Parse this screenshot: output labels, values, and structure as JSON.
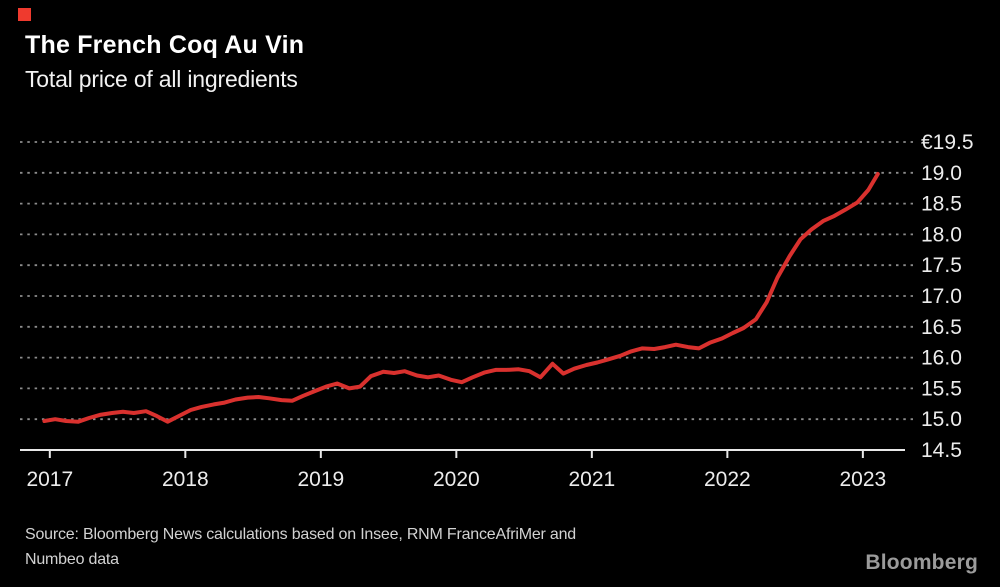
{
  "brand": {
    "red_square_color": "#ef3a2e",
    "logo_text": "Bloomberg",
    "logo_color": "#9b9b9b"
  },
  "header": {
    "title": "The French Coq Au Vin",
    "subtitle": "Total price of all ingredients"
  },
  "footer": {
    "source_line1": "Source: Bloomberg News calculations based on Insee, RNM FranceAfriMer and",
    "source_line2": "Numbeo data"
  },
  "chart_data": {
    "type": "line",
    "title": "The French Coq Au Vin",
    "subtitle": "Total price of all ingredients",
    "unit": "EUR",
    "legend": "none",
    "grid_style": "dotted horizontal gridlines, solid baseline axis",
    "line_color": "#d9312e",
    "grid_color": "#8c8c8c",
    "axis_color": "#e8e8e8",
    "tick_label_color": "#ececec",
    "xlim": [
      2016.78,
      2023.37
    ],
    "ylim": [
      14.5,
      19.5
    ],
    "baseline_value": 14.5,
    "x_ticks": [
      {
        "value": 2017,
        "label": "2017"
      },
      {
        "value": 2018,
        "label": "2018"
      },
      {
        "value": 2019,
        "label": "2019"
      },
      {
        "value": 2020,
        "label": "2020"
      },
      {
        "value": 2021,
        "label": "2021"
      },
      {
        "value": 2022,
        "label": "2022"
      },
      {
        "value": 2023,
        "label": "2023"
      }
    ],
    "y_ticks": [
      {
        "value": 19.5,
        "label": "€19.5"
      },
      {
        "value": 19.0,
        "label": "19.0"
      },
      {
        "value": 18.5,
        "label": "18.5"
      },
      {
        "value": 18.0,
        "label": "18.0"
      },
      {
        "value": 17.5,
        "label": "17.5"
      },
      {
        "value": 17.0,
        "label": "17.0"
      },
      {
        "value": 16.5,
        "label": "16.5"
      },
      {
        "value": 16.0,
        "label": "16.0"
      },
      {
        "value": 15.5,
        "label": "15.5"
      },
      {
        "value": 15.0,
        "label": "15.0"
      },
      {
        "value": 14.5,
        "label": "14.5"
      }
    ],
    "series": [
      {
        "name": "Total price of all ingredients (EUR)",
        "points": [
          [
            2016.96,
            14.97
          ],
          [
            2017.04,
            15.0
          ],
          [
            2017.12,
            14.97
          ],
          [
            2017.21,
            14.96
          ],
          [
            2017.29,
            15.02
          ],
          [
            2017.37,
            15.07
          ],
          [
            2017.46,
            15.1
          ],
          [
            2017.54,
            15.12
          ],
          [
            2017.62,
            15.1
          ],
          [
            2017.71,
            15.13
          ],
          [
            2017.79,
            15.05
          ],
          [
            2017.87,
            14.96
          ],
          [
            2017.96,
            15.06
          ],
          [
            2018.04,
            15.15
          ],
          [
            2018.12,
            15.2
          ],
          [
            2018.21,
            15.24
          ],
          [
            2018.29,
            15.27
          ],
          [
            2018.37,
            15.32
          ],
          [
            2018.46,
            15.35
          ],
          [
            2018.54,
            15.36
          ],
          [
            2018.62,
            15.34
          ],
          [
            2018.71,
            15.31
          ],
          [
            2018.79,
            15.3
          ],
          [
            2018.87,
            15.38
          ],
          [
            2018.96,
            15.46
          ],
          [
            2019.04,
            15.53
          ],
          [
            2019.12,
            15.58
          ],
          [
            2019.21,
            15.5
          ],
          [
            2019.29,
            15.53
          ],
          [
            2019.37,
            15.7
          ],
          [
            2019.46,
            15.77
          ],
          [
            2019.54,
            15.75
          ],
          [
            2019.62,
            15.78
          ],
          [
            2019.71,
            15.71
          ],
          [
            2019.79,
            15.68
          ],
          [
            2019.87,
            15.71
          ],
          [
            2019.96,
            15.64
          ],
          [
            2020.04,
            15.6
          ],
          [
            2020.12,
            15.68
          ],
          [
            2020.21,
            15.76
          ],
          [
            2020.29,
            15.8
          ],
          [
            2020.37,
            15.8
          ],
          [
            2020.46,
            15.81
          ],
          [
            2020.54,
            15.78
          ],
          [
            2020.62,
            15.68
          ],
          [
            2020.71,
            15.9
          ],
          [
            2020.79,
            15.74
          ],
          [
            2020.87,
            15.82
          ],
          [
            2020.96,
            15.88
          ],
          [
            2021.04,
            15.92
          ],
          [
            2021.12,
            15.97
          ],
          [
            2021.21,
            16.03
          ],
          [
            2021.29,
            16.1
          ],
          [
            2021.37,
            16.15
          ],
          [
            2021.46,
            16.14
          ],
          [
            2021.54,
            16.17
          ],
          [
            2021.62,
            16.21
          ],
          [
            2021.71,
            16.17
          ],
          [
            2021.79,
            16.15
          ],
          [
            2021.87,
            16.24
          ],
          [
            2021.96,
            16.31
          ],
          [
            2022.04,
            16.4
          ],
          [
            2022.12,
            16.48
          ],
          [
            2022.21,
            16.62
          ],
          [
            2022.29,
            16.9
          ],
          [
            2022.37,
            17.3
          ],
          [
            2022.46,
            17.65
          ],
          [
            2022.54,
            17.92
          ],
          [
            2022.62,
            18.08
          ],
          [
            2022.71,
            18.22
          ],
          [
            2022.79,
            18.3
          ],
          [
            2022.87,
            18.4
          ],
          [
            2022.96,
            18.52
          ],
          [
            2023.04,
            18.72
          ],
          [
            2023.11,
            18.98
          ]
        ]
      }
    ]
  }
}
